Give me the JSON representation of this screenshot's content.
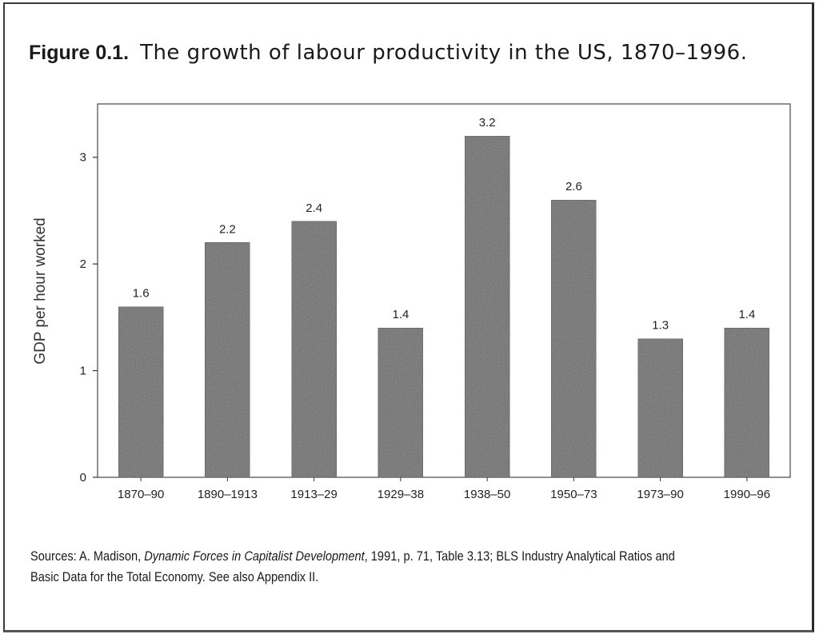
{
  "figure": {
    "label": "Figure 0.1.",
    "title": "The growth of labour productivity in the US, 1870–1996."
  },
  "chart_data": {
    "type": "bar",
    "title": "The growth of labour productivity in the US, 1870–1996.",
    "xlabel": "",
    "ylabel": "GDP per hour worked",
    "categories": [
      "1870–90",
      "1890–1913",
      "1913–29",
      "1929–38",
      "1938–50",
      "1950–73",
      "1973–90",
      "1990–96"
    ],
    "values": [
      1.6,
      2.2,
      2.4,
      1.4,
      3.2,
      2.6,
      1.3,
      1.4
    ],
    "data_labels": [
      "1.6",
      "2.2",
      "2.4",
      "1.4",
      "3.2",
      "2.6",
      "1.3",
      "1.4"
    ],
    "ylim": [
      0,
      3.5
    ],
    "yticks": [
      0,
      1,
      2,
      3
    ],
    "ytick_labels": [
      "0",
      "1",
      "2",
      "3"
    ],
    "grid": false,
    "bar_color": "#6a6a6a"
  },
  "sources": {
    "prefix": "Sources: A. Madison, ",
    "book_title": "Dynamic Forces in Capitalist Development",
    "rest_line1": ", 1991, p. 71, Table 3.13;  BLS Industry Analytical Ratios and",
    "line2": "Basic Data for the Total Economy. See also Appendix II."
  }
}
